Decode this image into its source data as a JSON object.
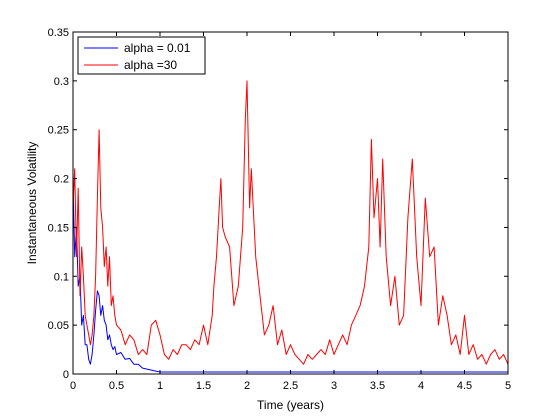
{
  "chart_data": {
    "type": "line",
    "title": "",
    "xlabel": "Time (years)",
    "ylabel": "Instantaneous Volatility",
    "xlim": [
      0,
      5
    ],
    "ylim": [
      0,
      0.35
    ],
    "xticks": [
      "0",
      "0.5",
      "1",
      "1.5",
      "2",
      "2.5",
      "3",
      "3.5",
      "4",
      "4.5",
      "5"
    ],
    "yticks": [
      "0",
      "0.05",
      "0.1",
      "0.15",
      "0.2",
      "0.25",
      "0.3",
      "0.35"
    ],
    "grid": false,
    "legend_position": "top-left",
    "series": [
      {
        "name": "alpha = 0.01",
        "color": "#0000ff",
        "x": [
          0,
          0.02,
          0.04,
          0.06,
          0.08,
          0.1,
          0.12,
          0.14,
          0.16,
          0.18,
          0.2,
          0.22,
          0.24,
          0.26,
          0.28,
          0.3,
          0.32,
          0.34,
          0.36,
          0.38,
          0.4,
          0.42,
          0.44,
          0.46,
          0.48,
          0.5,
          0.55,
          0.6,
          0.65,
          0.7,
          0.75,
          0.8,
          0.85,
          0.9,
          0.95,
          1.0,
          1.5,
          2.0,
          2.5,
          3.0,
          3.5,
          4.0,
          4.5,
          5.0
        ],
        "values": [
          0.2,
          0.12,
          0.15,
          0.09,
          0.1,
          0.05,
          0.06,
          0.03,
          0.03,
          0.015,
          0.01,
          0.02,
          0.04,
          0.065,
          0.085,
          0.08,
          0.06,
          0.07,
          0.055,
          0.05,
          0.035,
          0.04,
          0.03,
          0.025,
          0.028,
          0.02,
          0.022,
          0.015,
          0.016,
          0.01,
          0.01,
          0.006,
          0.005,
          0.004,
          0.003,
          0.002,
          0.002,
          0.002,
          0.002,
          0.002,
          0.002,
          0.002,
          0.002,
          0.002
        ]
      },
      {
        "name": "alpha =30",
        "color": "#ff0000",
        "x": [
          0,
          0.02,
          0.04,
          0.06,
          0.08,
          0.1,
          0.12,
          0.14,
          0.16,
          0.18,
          0.2,
          0.22,
          0.24,
          0.26,
          0.28,
          0.3,
          0.32,
          0.34,
          0.36,
          0.38,
          0.4,
          0.42,
          0.44,
          0.46,
          0.48,
          0.5,
          0.55,
          0.6,
          0.65,
          0.7,
          0.75,
          0.8,
          0.85,
          0.9,
          0.95,
          1.0,
          1.05,
          1.1,
          1.15,
          1.2,
          1.25,
          1.3,
          1.35,
          1.4,
          1.45,
          1.5,
          1.55,
          1.6,
          1.62,
          1.65,
          1.68,
          1.7,
          1.72,
          1.75,
          1.8,
          1.85,
          1.9,
          1.95,
          1.98,
          2.0,
          2.03,
          2.05,
          2.1,
          2.15,
          2.2,
          2.25,
          2.3,
          2.35,
          2.4,
          2.45,
          2.5,
          2.55,
          2.6,
          2.65,
          2.7,
          2.75,
          2.8,
          2.85,
          2.9,
          2.95,
          3.0,
          3.05,
          3.1,
          3.15,
          3.2,
          3.25,
          3.3,
          3.35,
          3.4,
          3.43,
          3.46,
          3.5,
          3.53,
          3.56,
          3.6,
          3.65,
          3.7,
          3.75,
          3.8,
          3.85,
          3.9,
          3.95,
          4.0,
          4.05,
          4.1,
          4.15,
          4.2,
          4.25,
          4.3,
          4.35,
          4.4,
          4.45,
          4.5,
          4.55,
          4.6,
          4.65,
          4.7,
          4.75,
          4.8,
          4.85,
          4.9,
          4.95,
          5.0
        ],
        "values": [
          0.17,
          0.21,
          0.12,
          0.19,
          0.08,
          0.13,
          0.1,
          0.06,
          0.05,
          0.04,
          0.03,
          0.04,
          0.06,
          0.1,
          0.18,
          0.25,
          0.17,
          0.15,
          0.11,
          0.13,
          0.09,
          0.12,
          0.07,
          0.08,
          0.06,
          0.05,
          0.045,
          0.03,
          0.04,
          0.035,
          0.02,
          0.025,
          0.02,
          0.05,
          0.055,
          0.04,
          0.02,
          0.015,
          0.025,
          0.02,
          0.03,
          0.03,
          0.025,
          0.035,
          0.03,
          0.05,
          0.03,
          0.06,
          0.09,
          0.12,
          0.17,
          0.2,
          0.15,
          0.14,
          0.13,
          0.07,
          0.09,
          0.15,
          0.26,
          0.3,
          0.17,
          0.21,
          0.12,
          0.08,
          0.04,
          0.05,
          0.07,
          0.03,
          0.045,
          0.02,
          0.03,
          0.02,
          0.015,
          0.01,
          0.02,
          0.015,
          0.02,
          0.025,
          0.02,
          0.035,
          0.02,
          0.03,
          0.04,
          0.03,
          0.05,
          0.06,
          0.07,
          0.09,
          0.13,
          0.24,
          0.16,
          0.2,
          0.13,
          0.22,
          0.12,
          0.07,
          0.1,
          0.05,
          0.06,
          0.16,
          0.22,
          0.12,
          0.07,
          0.18,
          0.12,
          0.13,
          0.05,
          0.08,
          0.06,
          0.03,
          0.04,
          0.02,
          0.06,
          0.02,
          0.03,
          0.015,
          0.02,
          0.01,
          0.02,
          0.025,
          0.015,
          0.02,
          0.01
        ]
      }
    ]
  }
}
